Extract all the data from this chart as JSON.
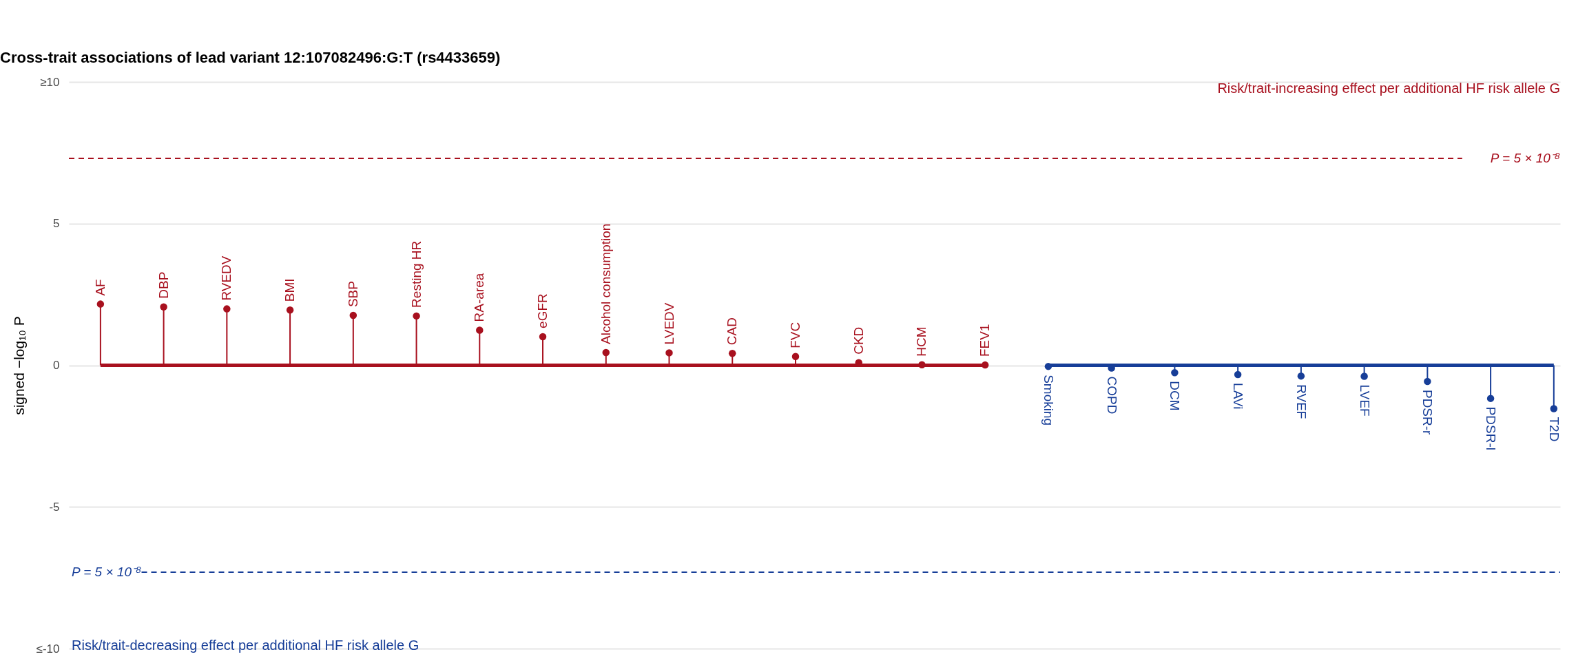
{
  "chart_data": {
    "type": "lollipop",
    "title": "Cross-trait associations of lead variant 12:107082496:G:T (rs4433659)",
    "ylabel": "signed −log₁₀ P",
    "categories": [
      "AF",
      "DBP",
      "RVEDV",
      "BMI",
      "SBP",
      "Resting HR",
      "RA-area",
      "eGFR",
      "Alcohol consumption",
      "LVEDV",
      "CAD",
      "FVC",
      "CKD",
      "HCM",
      "FEV1",
      "Smoking",
      "COPD",
      "DCM",
      "LAVi",
      "RVEF",
      "LVEF",
      "PDSR-r",
      "PDSR-l",
      "T2D"
    ],
    "series": [
      {
        "color": "#a8101e",
        "values": [
          2.16,
          2.06,
          1.99,
          1.95,
          1.76,
          1.74,
          1.24,
          1.01,
          0.45,
          0.44,
          0.42,
          0.31,
          0.09,
          0.02,
          0.01,
          null,
          null,
          null,
          null,
          null,
          null,
          null,
          null,
          null
        ]
      },
      {
        "color": "#173e98",
        "values": [
          null,
          null,
          null,
          null,
          null,
          null,
          null,
          null,
          null,
          null,
          null,
          null,
          null,
          null,
          null,
          -0.04,
          -0.1,
          -0.26,
          -0.33,
          -0.38,
          -0.39,
          -0.57,
          -1.17,
          -1.53
        ]
      }
    ],
    "ylim": [
      -10,
      10
    ],
    "yticks": [
      {
        "value": 10,
        "label": "≥10"
      },
      5,
      0,
      {
        "value": -5,
        "label": "-5"
      },
      {
        "value": -10,
        "label": "≤-10"
      }
    ],
    "grid": "y",
    "marker": "circle",
    "ref_lines": [
      {
        "axis": "y",
        "value": 0,
        "color": "#a8101e",
        "line_style": "solid"
      },
      {
        "axis": "y",
        "value": 0,
        "color": "#173e98",
        "line_style": "solid"
      },
      {
        "axis": "y",
        "value": 7.30103,
        "color": "#a8101e",
        "line_style": "dashed"
      },
      {
        "axis": "y",
        "value": -7.30103,
        "color": "#173e98",
        "line_style": "dashed"
      }
    ],
    "annotations": [
      "Risk/trait-increasing effect per additional HF risk allele G",
      "Risk/trait-decreasing effect per additional HF risk allele G",
      "P = 5 × 10⁻⁸",
      "P = 5 × 10⁻⁸"
    ]
  }
}
